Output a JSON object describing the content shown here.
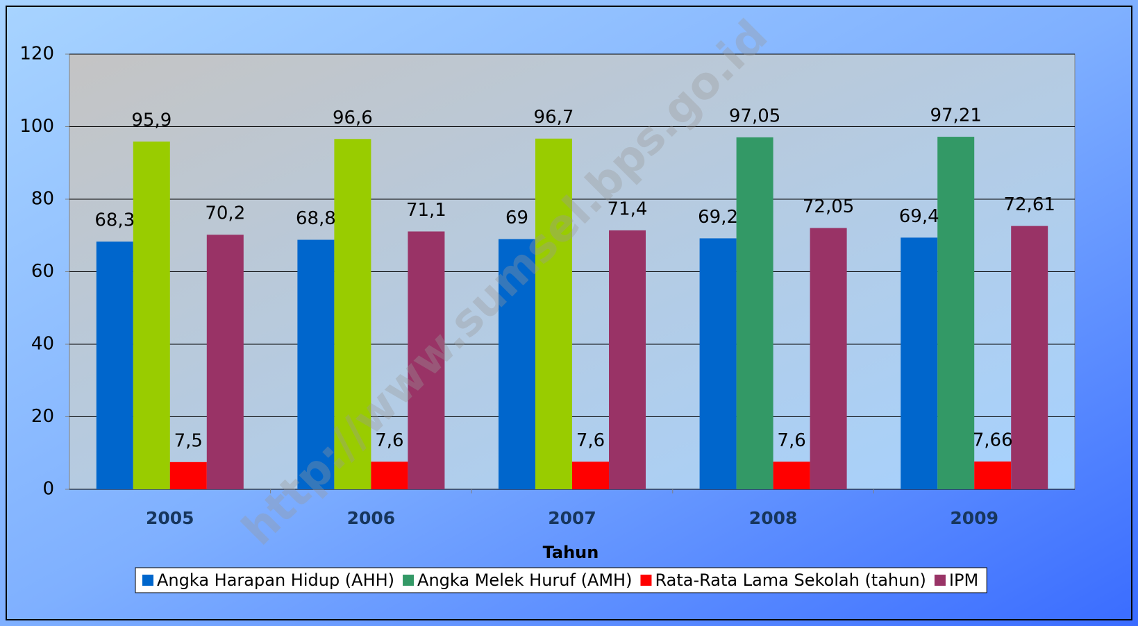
{
  "chart_data": {
    "type": "bar",
    "watermark": "http://www.sumsel.bps.go.id",
    "x_label": "Tahun",
    "categories": [
      "2005",
      "2006",
      "2007",
      "2008",
      "2009"
    ],
    "series": [
      {
        "name": "Angka Harapan Hidup (AHH)",
        "color": "#0066cc",
        "values": [
          68.3,
          68.8,
          69,
          69.2,
          69.4
        ],
        "value_labels": [
          "68,3",
          "68,8",
          "69",
          "69,2",
          "69,4"
        ]
      },
      {
        "name": "Angka Melek Huruf (AMH)",
        "color": "#339966",
        "colors": [
          "#99cc00",
          "#99cc00",
          "#99cc00",
          "#339966",
          "#339966"
        ],
        "values": [
          95.9,
          96.6,
          96.7,
          97.05,
          97.21
        ],
        "value_labels": [
          "95,9",
          "96,6",
          "96,7",
          "97,05",
          "97,21"
        ]
      },
      {
        "name": "Rata-Rata Lama Sekolah (tahun)",
        "color": "#ff0000",
        "values": [
          7.5,
          7.6,
          7.6,
          7.6,
          7.66
        ],
        "value_labels": [
          "7,5",
          "7,6",
          "7,6",
          "7,6",
          "7,66"
        ]
      },
      {
        "name": "IPM",
        "color": "#993366",
        "values": [
          70.2,
          71.1,
          71.4,
          72.05,
          72.61
        ],
        "value_labels": [
          "70,2",
          "71,1",
          "71,4",
          "72,05",
          "72,61"
        ]
      }
    ],
    "ylim": [
      0,
      120
    ],
    "yticks": [
      0,
      20,
      40,
      60,
      80,
      100,
      120
    ],
    "grid": true,
    "legend": "bottom"
  }
}
